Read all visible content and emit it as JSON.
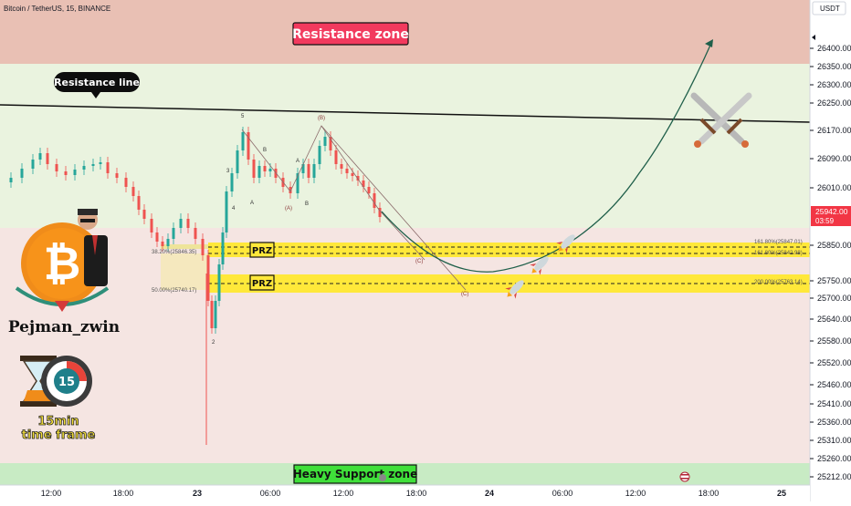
{
  "header": {
    "symbol_title": "Bitcoin / TetherUS, 15, BINANCE",
    "currency": "USDT"
  },
  "price_axis": {
    "ticks": [
      "26400.00",
      "26350.00",
      "26300.00",
      "26250.00",
      "26170.00",
      "26090.00",
      "26010.00",
      "25850.00",
      "25750.00",
      "25700.00",
      "25640.00",
      "25580.00",
      "25520.00",
      "25460.00",
      "25410.00",
      "25360.00",
      "25310.00",
      "25260.00",
      "25212.00"
    ],
    "current_price": "25942.00",
    "countdown": "03:59",
    "current_color": "#f23645"
  },
  "time_axis": {
    "ticks": [
      "12:00",
      "18:00",
      "23",
      "06:00",
      "12:00",
      "18:00",
      "24",
      "06:00",
      "12:00",
      "18:00",
      "25"
    ]
  },
  "zones": {
    "resistance_zone": {
      "label": "Resistance zone",
      "color": "#e8bcb0",
      "label_bg": "#f23a5e"
    },
    "support_zone": {
      "label": "Heavy Support zone",
      "color": "#c8ebc4",
      "label_bg": "#3fe03a"
    },
    "prz_label": "PRZ",
    "prz_color": "#ffe83a"
  },
  "resistance_line": {
    "label": "Resistance line"
  },
  "fib_labels": {
    "fib_382": "38.20%(25846.35)",
    "fib_50": "50.00%(25740.17)",
    "ext_1618_a": "161.80%(25847.01)",
    "ext_1618_b": "161.80%(25842.98)",
    "ext_200": "200.00%(25763.14)"
  },
  "wave_labels": {
    "w1": "1",
    "w2": "2",
    "w3": "3",
    "w4": "4",
    "w5": "5",
    "wA": "A",
    "wB": "B",
    "wB_paren": "(B)",
    "wA_paren": "(A)",
    "wC_paren": "(C)",
    "wA2": "A",
    "wB2": "B",
    "wC": "(C)"
  },
  "branding": {
    "author": "Pejman_zwin",
    "timeframe_line1": "15min",
    "timeframe_line2": "time frame",
    "timer_value": "15"
  },
  "icons": [
    "bitcoin-logo-icon",
    "author-avatar-icon",
    "hourglass-icon",
    "timer-icon",
    "crossed-swords-icon",
    "rocket-icon",
    "flag-icon"
  ]
}
